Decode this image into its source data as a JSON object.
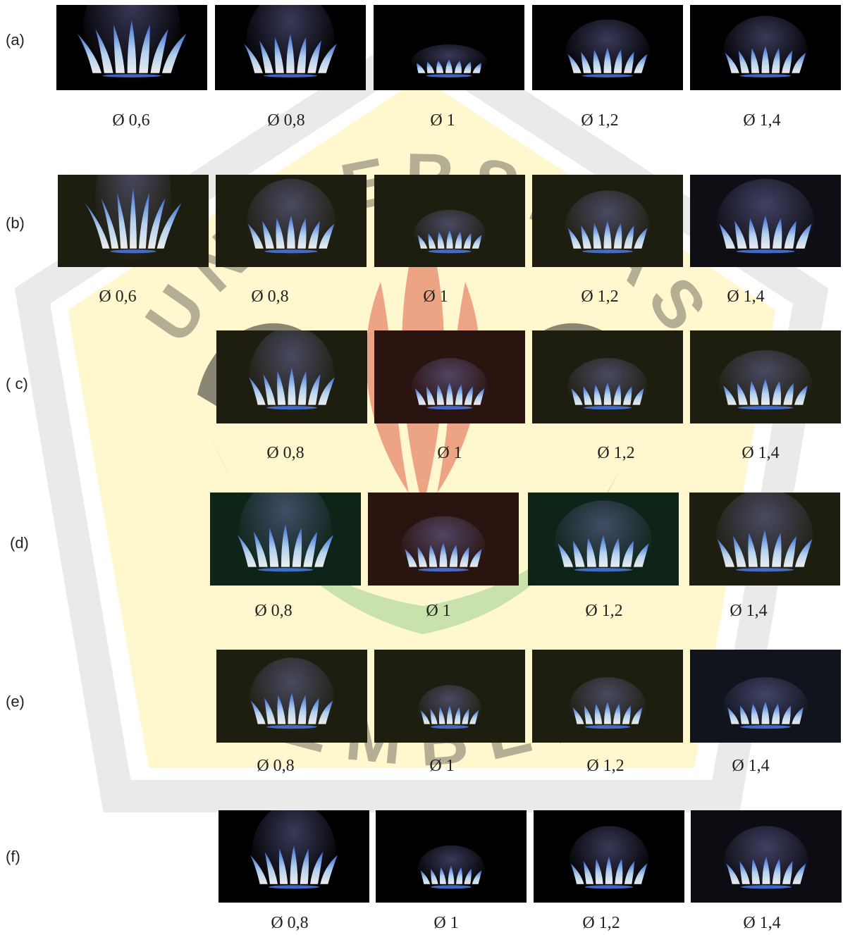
{
  "watermark": {
    "arc_top": "UNIVERSITAS",
    "arc_bottom": "JEMBER",
    "colors": {
      "field": "#fff3a8",
      "border": "#d9d9d9",
      "leaf_red": "#e0604a",
      "leaf_green": "#9ccf8f",
      "swirl": "#2a2a2a"
    }
  },
  "flame_colors": {
    "core": "#ffffff",
    "inner": "#bfe0ff",
    "outer": "#3f6fe0",
    "halo": "#7f7fc8",
    "base": "#4f7ff0"
  },
  "rows": [
    {
      "label": "(a)",
      "panels": [
        {
          "caption": "Ø 0,6",
          "flame_height": 0.62,
          "flame_width": 0.46,
          "tint": "#000000"
        },
        {
          "caption": "Ø 0,8",
          "flame_height": 0.46,
          "flame_width": 0.42,
          "tint": "#000000"
        },
        {
          "caption": "Ø 1",
          "flame_height": 0.16,
          "flame_width": 0.36,
          "tint": "#000000"
        },
        {
          "caption": "Ø 1,2",
          "flame_height": 0.3,
          "flame_width": 0.4,
          "tint": "#000000"
        },
        {
          "caption": "Ø 1,4",
          "flame_height": 0.32,
          "flame_width": 0.4,
          "tint": "#000000"
        }
      ]
    },
    {
      "label": "(b)",
      "panels": [
        {
          "caption": "Ø 0,6",
          "flame_height": 0.66,
          "flame_width": 0.36,
          "tint": "#1e1e10"
        },
        {
          "caption": "Ø 0,8",
          "flame_height": 0.36,
          "flame_width": 0.42,
          "tint": "#1e1e10"
        },
        {
          "caption": "Ø 1",
          "flame_height": 0.2,
          "flame_width": 0.34,
          "tint": "#1e1e10"
        },
        {
          "caption": "Ø 1,2",
          "flame_height": 0.3,
          "flame_width": 0.4,
          "tint": "#1e1e10"
        },
        {
          "caption": "Ø 1,4",
          "flame_height": 0.36,
          "flame_width": 0.46,
          "tint": "#0e0e14"
        }
      ]
    },
    {
      "label": "( c)",
      "panels": [
        {
          "caption": "Ø 0,8",
          "flame_height": 0.4,
          "flame_width": 0.4,
          "tint": "#1e1e10"
        },
        {
          "caption": "Ø 1",
          "flame_height": 0.24,
          "flame_width": 0.36,
          "tint": "#2a1410"
        },
        {
          "caption": "Ø 1,2",
          "flame_height": 0.24,
          "flame_width": 0.38,
          "tint": "#1e1e10"
        },
        {
          "caption": "Ø 1,4",
          "flame_height": 0.28,
          "flame_width": 0.44,
          "tint": "#1e1e10"
        }
      ]
    },
    {
      "label": "(d)",
      "panels": [
        {
          "caption": "Ø 0,8",
          "flame_height": 0.46,
          "flame_width": 0.44,
          "tint": "#0e2418"
        },
        {
          "caption": "Ø 1",
          "flame_height": 0.26,
          "flame_width": 0.4,
          "tint": "#2a1410"
        },
        {
          "caption": "Ø 1,2",
          "flame_height": 0.34,
          "flame_width": 0.46,
          "tint": "#0e2418"
        },
        {
          "caption": "Ø 1,4",
          "flame_height": 0.4,
          "flame_width": 0.46,
          "tint": "#1e1e10"
        }
      ]
    },
    {
      "label": "(e)",
      "panels": [
        {
          "caption": "Ø 0,8",
          "flame_height": 0.34,
          "flame_width": 0.4,
          "tint": "#1e1e10"
        },
        {
          "caption": "Ø 1",
          "flame_height": 0.2,
          "flame_width": 0.3,
          "tint": "#1e1e10"
        },
        {
          "caption": "Ø 1,2",
          "flame_height": 0.24,
          "flame_width": 0.36,
          "tint": "#1e1e10"
        },
        {
          "caption": "Ø 1,4",
          "flame_height": 0.24,
          "flame_width": 0.4,
          "tint": "#10141c"
        }
      ]
    },
    {
      "label": "(f)",
      "panels": [
        {
          "caption": "Ø 0,8",
          "flame_height": 0.42,
          "flame_width": 0.4,
          "tint": "#000000"
        },
        {
          "caption": "Ø 1",
          "flame_height": 0.2,
          "flame_width": 0.32,
          "tint": "#000000"
        },
        {
          "caption": "Ø 1,2",
          "flame_height": 0.3,
          "flame_width": 0.38,
          "tint": "#000000"
        },
        {
          "caption": "Ø 1,4",
          "flame_height": 0.3,
          "flame_width": 0.4,
          "tint": "#0c0c12"
        }
      ]
    }
  ]
}
